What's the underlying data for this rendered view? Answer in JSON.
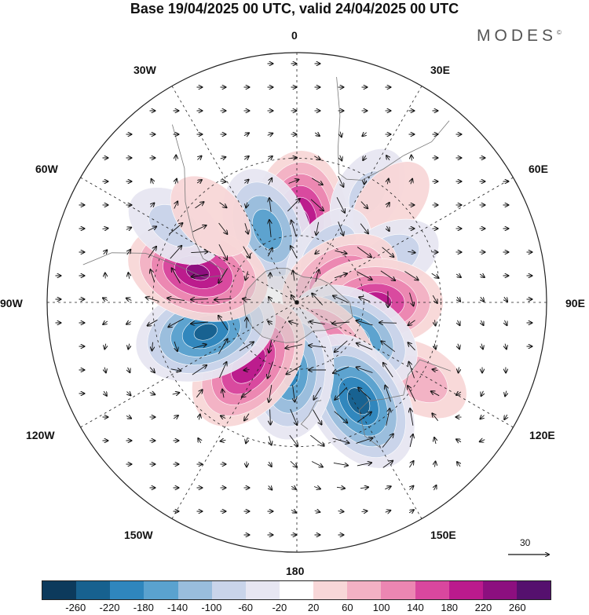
{
  "title": "Base 19/04/2025 00 UTC, valid 24/04/2025 00 UTC",
  "logo": "MODES",
  "logo_mark": "©",
  "longitude_labels": {
    "lon_0": "0",
    "lon_30e": "30E",
    "lon_60e": "60E",
    "lon_90e": "90E",
    "lon_120e": "120E",
    "lon_150e": "150E",
    "lon_180": "180",
    "lon_150w": "150W",
    "lon_120w": "120W",
    "lon_90w": "90W",
    "lon_60w": "60W",
    "lon_30w": "30W"
  },
  "vector_scale_label": "30",
  "colorbar": {
    "colors": [
      "#0c3a5c",
      "#17618f",
      "#2f86bd",
      "#5aa2cf",
      "#99bddd",
      "#c9d4ea",
      "#e7e6f2",
      "#ffffff",
      "#f8d7d8",
      "#f3b1c4",
      "#ec86b2",
      "#d9479e",
      "#bb1a8d",
      "#8c0f7f",
      "#55106e"
    ],
    "ticks": [
      "-260",
      "-220",
      "-180",
      "-140",
      "-100",
      "-60",
      "-20",
      "20",
      "60",
      "100",
      "140",
      "180",
      "220",
      "260"
    ]
  },
  "map_data": {
    "projection": "south-polar-stereographic",
    "anomaly_centers": [
      {
        "name": "south-atlantic-positive",
        "lon": 2,
        "lat": -55,
        "value": 240
      },
      {
        "name": "south-atlantic-negative",
        "lon": -22,
        "lat": -55,
        "value": -170
      },
      {
        "name": "south-atlantic-east-negative",
        "lon": 33,
        "lat": -35,
        "value": -70
      },
      {
        "name": "southern-africa-positive",
        "lon": 43,
        "lat": -32,
        "value": 50
      },
      {
        "name": "indian-ocean-negative",
        "lon": 35,
        "lat": -65,
        "value": -110
      },
      {
        "name": "indian-ocean-east-negative",
        "lon": 64,
        "lat": -45,
        "value": -90
      },
      {
        "name": "indian-ocean-positive",
        "lon": 62,
        "lat": -68,
        "value": 160
      },
      {
        "name": "south-indian-positive",
        "lon": 90,
        "lat": -55,
        "value": 200
      },
      {
        "name": "australia-positive",
        "lon": 122,
        "lat": -30,
        "value": 90
      },
      {
        "name": "south-indian-negative",
        "lon": 120,
        "lat": -60,
        "value": -200
      },
      {
        "name": "tasman-positive",
        "lon": 148,
        "lat": -62,
        "value": 180
      },
      {
        "name": "new-zealand-negative",
        "lon": 148,
        "lat": -40,
        "value": -240
      },
      {
        "name": "ross-sea-negative",
        "lon": -175,
        "lat": -58,
        "value": -190
      },
      {
        "name": "south-pacific-positive",
        "lon": -142,
        "lat": -55,
        "value": 220
      },
      {
        "name": "south-pacific-east-negative",
        "lon": -108,
        "lat": -48,
        "value": -230
      },
      {
        "name": "southeast-pacific-positive",
        "lon": -73,
        "lat": -45,
        "value": 230
      },
      {
        "name": "south-america-negative",
        "lon": -58,
        "lat": -30,
        "value": -80
      },
      {
        "name": "southwest-atlantic-positive",
        "lon": -45,
        "lat": -38,
        "value": 60
      }
    ]
  }
}
